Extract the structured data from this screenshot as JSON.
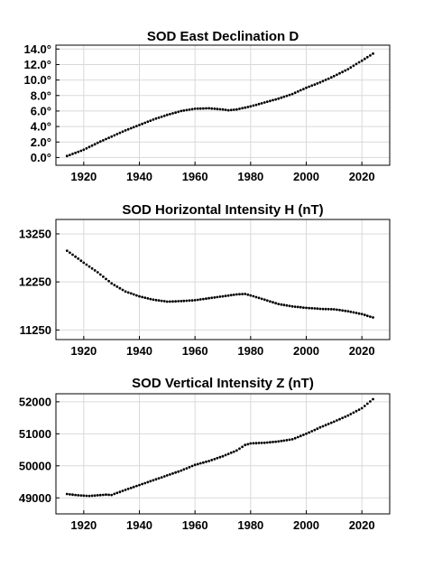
{
  "chart_data": [
    {
      "type": "scatter",
      "title": "SOD East Declination  D",
      "xlabel": "",
      "ylabel": "",
      "xlim": [
        1910,
        2030
      ],
      "ylim": [
        -1.0,
        14.5
      ],
      "xticks": [
        1920,
        1940,
        1960,
        1980,
        2000,
        2020
      ],
      "yticks": [
        0,
        2,
        4,
        6,
        8,
        10,
        12,
        14
      ],
      "ytick_labels": [
        "0.0°",
        "2.0°",
        "4.0°",
        "6.0°",
        "8.0°",
        "10.0°",
        "12.0°",
        "14.0°"
      ],
      "grid": true,
      "anchors": {
        "x": [
          1914,
          1920,
          1925,
          1930,
          1935,
          1940,
          1945,
          1950,
          1955,
          1960,
          1965,
          1970,
          1972,
          1975,
          1980,
          1985,
          1990,
          1995,
          2000,
          2005,
          2010,
          2015,
          2020,
          2024
        ],
        "y": [
          0.2,
          1.0,
          1.9,
          2.7,
          3.5,
          4.2,
          4.9,
          5.5,
          6.0,
          6.3,
          6.35,
          6.2,
          6.1,
          6.2,
          6.6,
          7.1,
          7.6,
          8.2,
          9.0,
          9.7,
          10.5,
          11.4,
          12.5,
          13.4
        ]
      }
    },
    {
      "type": "scatter",
      "title": "SOD Horizontal Intensity  H (nT)",
      "xlabel": "",
      "ylabel": "",
      "xlim": [
        1910,
        2030
      ],
      "ylim": [
        11050,
        13550
      ],
      "xticks": [
        1920,
        1940,
        1960,
        1980,
        2000,
        2020
      ],
      "yticks": [
        11250,
        12250,
        13250
      ],
      "ytick_labels": [
        "11250",
        "12250",
        "13250"
      ],
      "grid": true,
      "anchors": {
        "x": [
          1914,
          1920,
          1925,
          1930,
          1935,
          1940,
          1945,
          1950,
          1955,
          1960,
          1965,
          1970,
          1975,
          1978,
          1980,
          1985,
          1990,
          1995,
          2000,
          2005,
          2010,
          2015,
          2020,
          2024
        ],
        "y": [
          12900,
          12650,
          12450,
          12220,
          12050,
          11950,
          11880,
          11840,
          11850,
          11870,
          11910,
          11950,
          11990,
          12000,
          11970,
          11880,
          11790,
          11740,
          11710,
          11690,
          11680,
          11640,
          11580,
          11510
        ]
      }
    },
    {
      "type": "scatter",
      "title": "SOD Vertical Intensity  Z (nT)",
      "xlabel": "",
      "ylabel": "",
      "xlim": [
        1910,
        2030
      ],
      "ylim": [
        48500,
        52250
      ],
      "xticks": [
        1920,
        1940,
        1960,
        1980,
        2000,
        2020
      ],
      "yticks": [
        49000,
        50000,
        51000,
        52000
      ],
      "ytick_labels": [
        "49000",
        "50000",
        "51000",
        "52000"
      ],
      "grid": true,
      "anchors": {
        "x": [
          1914,
          1918,
          1922,
          1925,
          1928,
          1930,
          1935,
          1940,
          1945,
          1950,
          1955,
          1960,
          1965,
          1970,
          1975,
          1978,
          1980,
          1985,
          1990,
          1995,
          2000,
          2005,
          2010,
          2015,
          2020,
          2024
        ],
        "y": [
          49120,
          49080,
          49060,
          49080,
          49100,
          49090,
          49250,
          49400,
          49550,
          49700,
          49850,
          50030,
          50150,
          50300,
          50480,
          50650,
          50700,
          50720,
          50760,
          50830,
          51000,
          51200,
          51380,
          51570,
          51800,
          52080
        ]
      }
    }
  ]
}
